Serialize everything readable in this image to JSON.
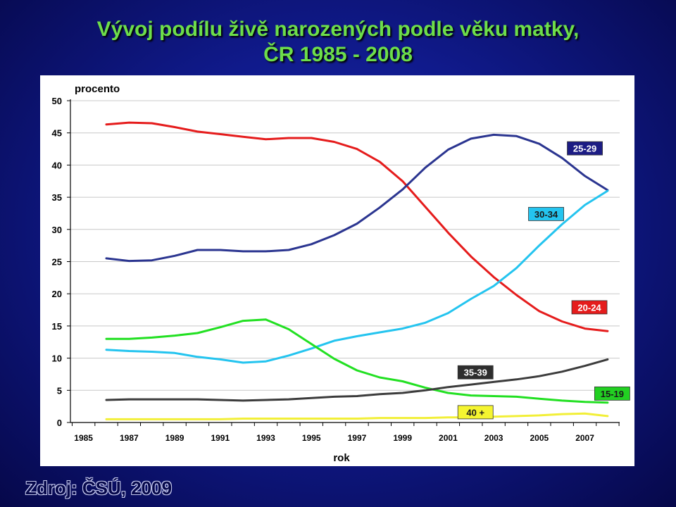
{
  "title": {
    "line1": "Vývoj podílu živě narozených podle věku matky,",
    "line2": "ČR 1985 - 2008"
  },
  "source": "Zdroj: ČSÚ, 2009",
  "chart_data": {
    "type": "line",
    "ylabel": "procento",
    "xlabel": "rok",
    "ylim": [
      0,
      50
    ],
    "yticks": [
      "0",
      "5",
      "10",
      "15",
      "20",
      "25",
      "30",
      "35",
      "40",
      "45",
      "50"
    ],
    "xtick_labels": [
      "1985",
      "1987",
      "1989",
      "1991",
      "1993",
      "1995",
      "1997",
      "1999",
      "2001",
      "2003",
      "2005",
      "2007"
    ],
    "grid": true,
    "x": [
      1986,
      1987,
      1988,
      1989,
      1990,
      1991,
      1992,
      1993,
      1994,
      1995,
      1996,
      1997,
      1998,
      1999,
      2000,
      2001,
      2002,
      2003,
      2004,
      2005,
      2006,
      2007,
      2008
    ],
    "series": [
      {
        "name": "20-24",
        "color": "#e51c1c",
        "values": [
          46.3,
          46.6,
          46.5,
          45.9,
          45.2,
          44.8,
          44.4,
          44.0,
          44.2,
          44.2,
          43.6,
          42.5,
          40.5,
          37.5,
          33.5,
          29.5,
          25.8,
          22.6,
          19.8,
          17.3,
          15.7,
          14.6,
          14.2
        ]
      },
      {
        "name": "25-29",
        "color": "#2b3590",
        "values": [
          25.5,
          25.1,
          25.2,
          25.9,
          26.8,
          26.8,
          26.6,
          26.6,
          26.8,
          27.7,
          29.1,
          30.9,
          33.4,
          36.2,
          39.6,
          42.4,
          44.1,
          44.7,
          44.5,
          43.3,
          41.1,
          38.3,
          36.1
        ]
      },
      {
        "name": "30-34",
        "color": "#24c4ef",
        "values": [
          11.3,
          11.1,
          11.0,
          10.8,
          10.2,
          9.8,
          9.3,
          9.5,
          10.4,
          11.5,
          12.7,
          13.4,
          14.0,
          14.6,
          15.5,
          17.0,
          19.2,
          21.2,
          24.0,
          27.5,
          30.8,
          33.8,
          36.0
        ]
      },
      {
        "name": "15-19",
        "color": "#22e022",
        "values": [
          13.0,
          13.0,
          13.2,
          13.5,
          13.9,
          14.8,
          15.8,
          16.0,
          14.5,
          12.2,
          9.9,
          8.1,
          7.0,
          6.4,
          5.4,
          4.6,
          4.2,
          4.1,
          4.0,
          3.7,
          3.4,
          3.2,
          3.1
        ]
      },
      {
        "name": "35-39",
        "color": "#3c3c3c",
        "values": [
          3.5,
          3.6,
          3.6,
          3.6,
          3.6,
          3.5,
          3.4,
          3.5,
          3.6,
          3.8,
          4.0,
          4.1,
          4.4,
          4.6,
          5.0,
          5.5,
          5.9,
          6.3,
          6.7,
          7.2,
          7.9,
          8.8,
          9.8
        ]
      },
      {
        "name": "40 +",
        "color": "#f2ef38",
        "values": [
          0.5,
          0.5,
          0.5,
          0.5,
          0.5,
          0.5,
          0.6,
          0.6,
          0.6,
          0.6,
          0.6,
          0.6,
          0.7,
          0.7,
          0.7,
          0.8,
          0.8,
          0.9,
          1.0,
          1.1,
          1.3,
          1.4,
          1.0
        ]
      }
    ],
    "labels": [
      {
        "text": "25-29",
        "fill": "#1c1c84",
        "text_color": "#ffffff",
        "x": 2007,
        "y": 42.6
      },
      {
        "text": "30-34",
        "fill": "#24c4ef",
        "text_color": "#1a1a1a",
        "x": 2005.3,
        "y": 32.4
      },
      {
        "text": "20-24",
        "fill": "#e51c1c",
        "text_color": "#ffffff",
        "x": 2007.2,
        "y": 17.9
      },
      {
        "text": "35-39",
        "fill": "#2e2e2e",
        "text_color": "#ffffff",
        "x": 2002.2,
        "y": 7.8
      },
      {
        "text": "15-19",
        "fill": "#22d022",
        "text_color": "#1a1a1a",
        "x": 2008.2,
        "y": 4.5
      },
      {
        "text": "40 +",
        "fill": "#f5f530",
        "text_color": "#1a1a1a",
        "x": 2002.2,
        "y": 1.6
      }
    ]
  }
}
